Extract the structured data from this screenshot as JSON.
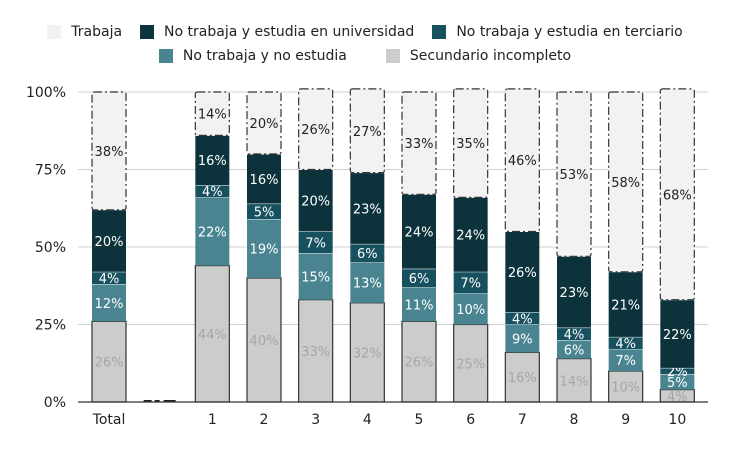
{
  "chart_data": {
    "type": "bar",
    "stacked": true,
    "title": "",
    "xlabel": "",
    "ylabel": "",
    "ylim": [
      0,
      100
    ],
    "y_ticks": [
      "0%",
      "25%",
      "50%",
      "75%",
      "100%"
    ],
    "grid": true,
    "legend_position": "top",
    "categories": [
      "Total",
      "",
      "1",
      "2",
      "3",
      "4",
      "5",
      "6",
      "7",
      "8",
      "9",
      "10"
    ],
    "series": [
      {
        "name": "Secundario incompleto",
        "color": "#cccccc",
        "label_color": "#a6a6a6",
        "values": [
          26,
          0,
          44,
          40,
          33,
          32,
          26,
          25,
          16,
          14,
          10,
          4
        ],
        "labels": [
          "26%",
          "",
          "44%",
          "40%",
          "33%",
          "32%",
          "26%",
          "25%",
          "16%",
          "14%",
          "10%",
          "4%"
        ]
      },
      {
        "name": "No trabaja y no estudia",
        "color": "#4a8491",
        "label_color": "#ffffff",
        "values": [
          12,
          0,
          22,
          19,
          15,
          13,
          11,
          10,
          9,
          6,
          7,
          5
        ],
        "labels": [
          "12%",
          "",
          "22%",
          "19%",
          "15%",
          "13%",
          "11%",
          "10%",
          "9%",
          "6%",
          "7%",
          "5%"
        ]
      },
      {
        "name": "No trabaja y estudia en terciario",
        "color": "#17505e",
        "label_color": "#ffffff",
        "values": [
          4,
          0,
          4,
          5,
          7,
          6,
          6,
          7,
          4,
          4,
          4,
          2
        ],
        "labels": [
          "4%",
          "",
          "4%",
          "5%",
          "7%",
          "6%",
          "6%",
          "7%",
          "4%",
          "4%",
          "4%",
          "2%"
        ]
      },
      {
        "name": "No trabaja y estudia en universidad",
        "color": "#0c333b",
        "label_color": "#ffffff",
        "values": [
          20,
          0,
          16,
          16,
          20,
          23,
          24,
          24,
          26,
          23,
          21,
          22
        ],
        "labels": [
          "20%",
          "",
          "16%",
          "16%",
          "20%",
          "23%",
          "24%",
          "24%",
          "26%",
          "23%",
          "21%",
          "22%"
        ]
      },
      {
        "name": "Trabaja",
        "color": "#f2f2f2",
        "label_color": "#222222",
        "values": [
          38,
          0,
          14,
          20,
          26,
          27,
          33,
          35,
          46,
          53,
          58,
          68
        ],
        "labels": [
          "38%",
          "",
          "14%",
          "20%",
          "26%",
          "27%",
          "33%",
          "35%",
          "46%",
          "53%",
          "58%",
          "68%"
        ]
      }
    ]
  },
  "legend": {
    "row1": [
      {
        "name": "Trabaja",
        "color": "#f2f2f2"
      },
      {
        "name": "No trabaja y estudia en universidad",
        "color": "#0c333b"
      },
      {
        "name": "No trabaja y estudia en terciario",
        "color": "#17505e"
      }
    ],
    "row2": [
      {
        "name": "No trabaja y no estudia",
        "color": "#4a8491"
      },
      {
        "name": "Secundario incompleto",
        "color": "#cccccc"
      }
    ]
  }
}
